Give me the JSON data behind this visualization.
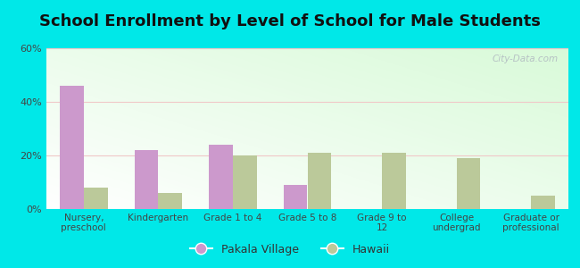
{
  "title": "School Enrollment by Level of School for Male Students",
  "categories": [
    "Nursery,\npreschool",
    "Kindergarten",
    "Grade 1 to 4",
    "Grade 5 to 8",
    "Grade 9 to\n12",
    "College\nundergrad",
    "Graduate or\nprofessional"
  ],
  "pakala_values": [
    46,
    22,
    24,
    9,
    0,
    0,
    0
  ],
  "hawaii_values": [
    8,
    6,
    20,
    21,
    21,
    19,
    5
  ],
  "pakala_color": "#cc99cc",
  "hawaii_color": "#bbc99a",
  "ylim": [
    0,
    60
  ],
  "yticks": [
    0,
    20,
    40,
    60
  ],
  "ytick_labels": [
    "0%",
    "20%",
    "40%",
    "60%"
  ],
  "background_outer": "#00e8e8",
  "title_fontsize": 13,
  "legend_labels": [
    "Pakala Village",
    "Hawaii"
  ],
  "watermark": "City-Data.com",
  "bar_width": 0.32
}
